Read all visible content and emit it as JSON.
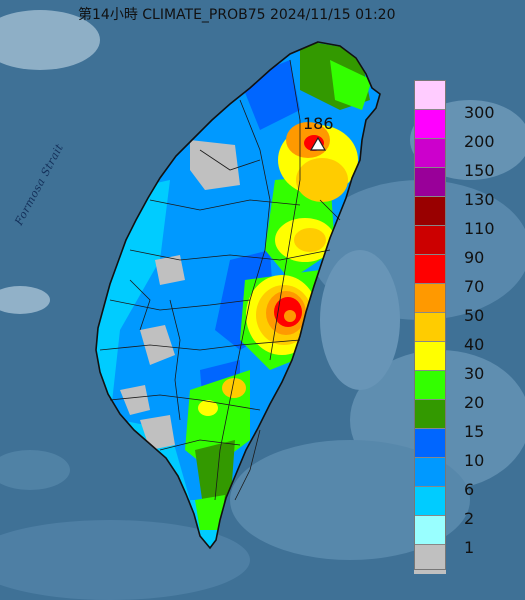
{
  "map": {
    "title": "第14小時  CLIMATE_PROB75 2024/11/15 01:20",
    "sea_label": "Formosa Strait",
    "peak": {
      "value": "186"
    }
  },
  "legend": {
    "items": [
      {
        "label": "300",
        "color": "#ffccff"
      },
      {
        "label": "200",
        "color": "#ff00ff"
      },
      {
        "label": "150",
        "color": "#cc00cc"
      },
      {
        "label": "130",
        "color": "#990099"
      },
      {
        "label": "110",
        "color": "#990000"
      },
      {
        "label": "90",
        "color": "#cc0000"
      },
      {
        "label": "70",
        "color": "#ff0000"
      },
      {
        "label": "50",
        "color": "#ff9900"
      },
      {
        "label": "40",
        "color": "#ffcc00"
      },
      {
        "label": "30",
        "color": "#ffff00"
      },
      {
        "label": "20",
        "color": "#33ff00"
      },
      {
        "label": "15",
        "color": "#339900"
      },
      {
        "label": "10",
        "color": "#0066ff"
      },
      {
        "label": "6",
        "color": "#0099ff"
      },
      {
        "label": "2",
        "color": "#00ccff"
      },
      {
        "label": "1",
        "color": "#99ffff"
      },
      {
        "label": "",
        "color": "#c0c0c0"
      }
    ]
  },
  "colors": {
    "sea": "#3d6f93",
    "border": "#1a1a1a"
  }
}
